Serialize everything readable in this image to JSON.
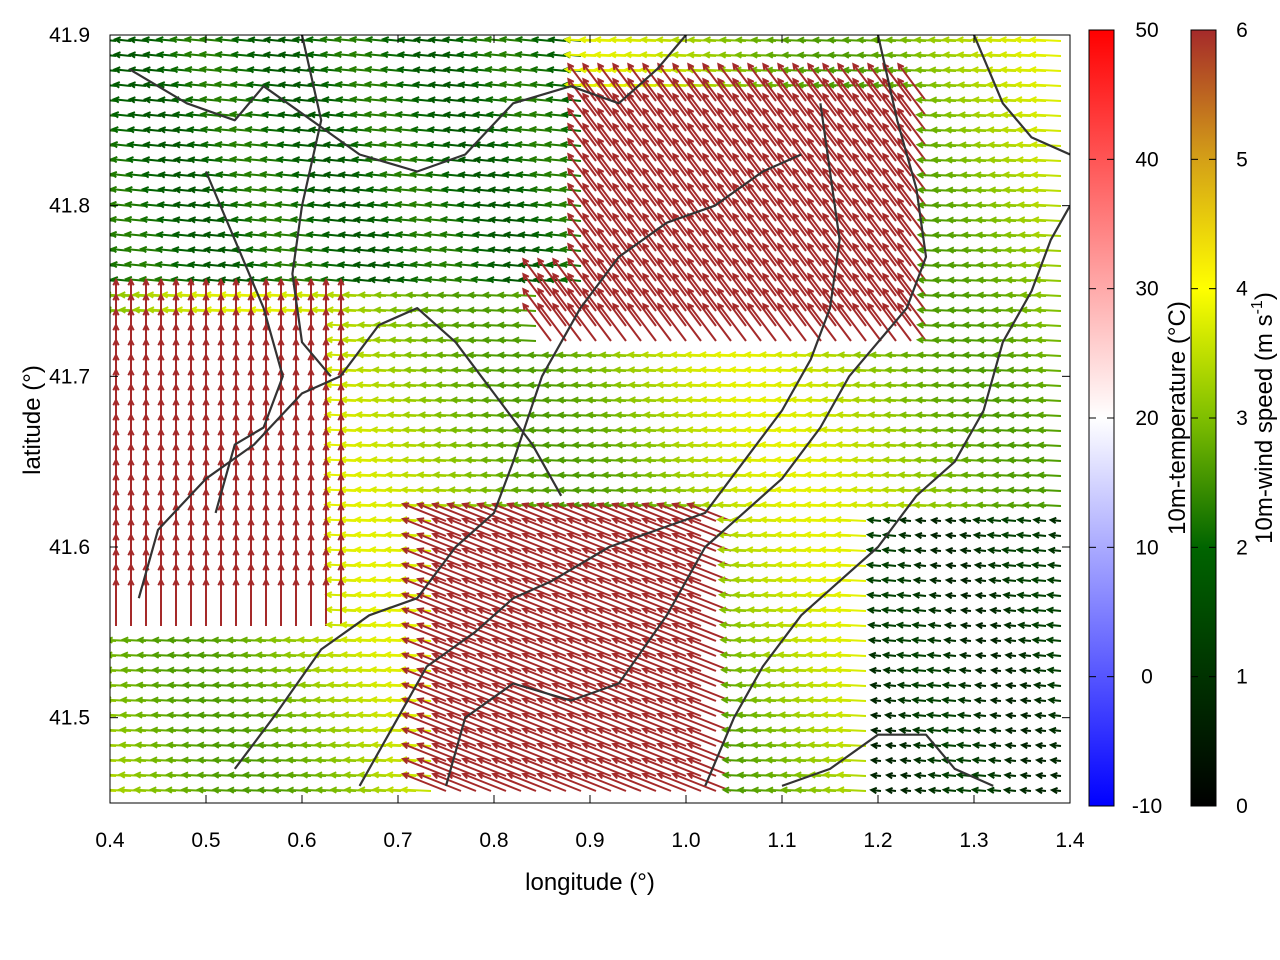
{
  "chart_data": {
    "type": "vector-field",
    "xlabel": "longitude (°)",
    "ylabel": "latitude (°)",
    "xlim": [
      0.4,
      1.4
    ],
    "ylim": [
      41.45,
      41.9
    ],
    "xticks": [
      {
        "value": 0.4,
        "label": "0.4"
      },
      {
        "value": 0.5,
        "label": "0.5"
      },
      {
        "value": 0.6,
        "label": "0.6"
      },
      {
        "value": 0.7,
        "label": "0.7"
      },
      {
        "value": 0.8,
        "label": "0.8"
      },
      {
        "value": 0.9,
        "label": "0.9"
      },
      {
        "value": 1.0,
        "label": "1.0"
      },
      {
        "value": 1.1,
        "label": "1.1"
      },
      {
        "value": 1.2,
        "label": "1.2"
      },
      {
        "value": 1.3,
        "label": "1.3"
      },
      {
        "value": 1.4,
        "label": "1.4"
      }
    ],
    "yticks": [
      {
        "value": 41.5,
        "label": "41.5"
      },
      {
        "value": 41.6,
        "label": "41.6"
      },
      {
        "value": 41.7,
        "label": "41.7"
      },
      {
        "value": 41.8,
        "label": "41.8"
      },
      {
        "value": 41.9,
        "label": "41.9"
      }
    ],
    "colorbars": [
      {
        "label": "10m-temperature (°C)",
        "range": [
          -10,
          50
        ],
        "ticks": [
          {
            "value": -10,
            "label": "-10"
          },
          {
            "value": 0,
            "label": "0"
          },
          {
            "value": 10,
            "label": "10"
          },
          {
            "value": 20,
            "label": "20"
          },
          {
            "value": 30,
            "label": "30"
          },
          {
            "value": 40,
            "label": "40"
          },
          {
            "value": 50,
            "label": "50"
          }
        ],
        "colors": [
          "#0000ff",
          "#ffffff",
          "#ff0000"
        ]
      },
      {
        "label": "10m-wind speed (m s",
        "label_superscript": "-1",
        "label_suffix": ")",
        "range": [
          0,
          6
        ],
        "ticks": [
          {
            "value": 0,
            "label": "0"
          },
          {
            "value": 1,
            "label": "1"
          },
          {
            "value": 2,
            "label": "2"
          },
          {
            "value": 3,
            "label": "3"
          },
          {
            "value": 4,
            "label": "4"
          },
          {
            "value": 5,
            "label": "5"
          },
          {
            "value": 6,
            "label": "6"
          }
        ],
        "colors": [
          "#000000",
          "#006400",
          "#7fbf00",
          "#ffff00",
          "#d4a017",
          "#a52a2a"
        ]
      }
    ],
    "wind_field": {
      "strong_speed": 6,
      "strong_regions": [
        {
          "lon": [
            0.4,
            0.65
          ],
          "lat": [
            41.55,
            41.73
          ],
          "direction": "north"
        },
        {
          "lon": [
            0.75,
            1.05
          ],
          "lat": [
            41.45,
            41.62
          ],
          "direction": "west-north-west"
        },
        {
          "lon": [
            0.85,
            1.25
          ],
          "lat": [
            41.72,
            41.87
          ],
          "direction": "north-west"
        }
      ],
      "weak_regions": [
        {
          "lon": [
            0.4,
            0.9
          ],
          "lat": [
            41.75,
            41.9
          ],
          "speed": 2
        },
        {
          "lon": [
            1.2,
            1.4
          ],
          "lat": [
            41.45,
            41.62
          ],
          "speed": 1
        }
      ]
    },
    "contours": [
      [
        [
          0.42,
          41.88
        ],
        [
          0.48,
          41.86
        ],
        [
          0.53,
          41.85
        ],
        [
          0.56,
          41.87
        ],
        [
          0.61,
          41.85
        ],
        [
          0.66,
          41.83
        ],
        [
          0.72,
          41.82
        ],
        [
          0.77,
          41.83
        ],
        [
          0.82,
          41.86
        ],
        [
          0.88,
          41.87
        ],
        [
          0.93,
          41.86
        ],
        [
          0.97,
          41.88
        ],
        [
          1.0,
          41.9
        ]
      ],
      [
        [
          0.5,
          41.82
        ],
        [
          0.53,
          41.78
        ],
        [
          0.56,
          41.74
        ],
        [
          0.58,
          41.7
        ],
        [
          0.56,
          41.67
        ],
        [
          0.53,
          41.66
        ],
        [
          0.51,
          41.62
        ]
      ],
      [
        [
          0.6,
          41.9
        ],
        [
          0.62,
          41.85
        ],
        [
          0.6,
          41.8
        ],
        [
          0.59,
          41.76
        ],
        [
          0.6,
          41.72
        ],
        [
          0.63,
          41.7
        ]
      ],
      [
        [
          0.43,
          41.57
        ],
        [
          0.45,
          41.61
        ],
        [
          0.5,
          41.64
        ],
        [
          0.55,
          41.66
        ],
        [
          0.6,
          41.69
        ],
        [
          0.64,
          41.7
        ],
        [
          0.68,
          41.73
        ],
        [
          0.72,
          41.74
        ],
        [
          0.76,
          41.72
        ],
        [
          0.8,
          41.69
        ],
        [
          0.84,
          41.66
        ],
        [
          0.87,
          41.63
        ]
      ],
      [
        [
          0.53,
          41.47
        ],
        [
          0.57,
          41.5
        ],
        [
          0.62,
          41.54
        ],
        [
          0.67,
          41.56
        ],
        [
          0.72,
          41.57
        ],
        [
          0.76,
          41.6
        ],
        [
          0.8,
          41.62
        ],
        [
          0.82,
          41.65
        ],
        [
          0.85,
          41.7
        ],
        [
          0.89,
          41.74
        ],
        [
          0.93,
          41.77
        ],
        [
          0.98,
          41.79
        ],
        [
          1.03,
          41.8
        ],
        [
          1.08,
          41.82
        ],
        [
          1.12,
          41.83
        ]
      ],
      [
        [
          0.66,
          41.46
        ],
        [
          0.7,
          41.5
        ],
        [
          0.73,
          41.53
        ],
        [
          0.78,
          41.55
        ],
        [
          0.82,
          41.57
        ],
        [
          0.86,
          41.58
        ],
        [
          0.92,
          41.6
        ],
        [
          0.97,
          41.61
        ],
        [
          1.02,
          41.62
        ],
        [
          1.06,
          41.65
        ],
        [
          1.1,
          41.68
        ],
        [
          1.13,
          41.71
        ],
        [
          1.15,
          41.74
        ],
        [
          1.16,
          41.78
        ],
        [
          1.15,
          41.82
        ],
        [
          1.14,
          41.86
        ]
      ],
      [
        [
          0.75,
          41.46
        ],
        [
          0.77,
          41.5
        ],
        [
          0.82,
          41.52
        ],
        [
          0.88,
          41.51
        ],
        [
          0.93,
          41.52
        ],
        [
          0.98,
          41.56
        ],
        [
          1.02,
          41.6
        ],
        [
          1.06,
          41.62
        ],
        [
          1.1,
          41.64
        ],
        [
          1.14,
          41.67
        ],
        [
          1.17,
          41.7
        ],
        [
          1.2,
          41.72
        ],
        [
          1.23,
          41.74
        ],
        [
          1.25,
          41.77
        ],
        [
          1.24,
          41.81
        ],
        [
          1.22,
          41.85
        ],
        [
          1.2,
          41.9
        ]
      ],
      [
        [
          1.02,
          41.46
        ],
        [
          1.05,
          41.5
        ],
        [
          1.08,
          41.53
        ],
        [
          1.12,
          41.56
        ],
        [
          1.16,
          41.58
        ],
        [
          1.2,
          41.6
        ],
        [
          1.24,
          41.63
        ],
        [
          1.28,
          41.65
        ],
        [
          1.31,
          41.68
        ],
        [
          1.33,
          41.72
        ],
        [
          1.36,
          41.75
        ],
        [
          1.38,
          41.78
        ],
        [
          1.4,
          41.8
        ]
      ],
      [
        [
          1.1,
          41.46
        ],
        [
          1.15,
          41.47
        ],
        [
          1.2,
          41.49
        ],
        [
          1.25,
          41.49
        ],
        [
          1.28,
          41.47
        ],
        [
          1.32,
          41.46
        ]
      ],
      [
        [
          1.3,
          41.9
        ],
        [
          1.33,
          41.86
        ],
        [
          1.36,
          41.84
        ],
        [
          1.4,
          41.83
        ]
      ]
    ]
  }
}
